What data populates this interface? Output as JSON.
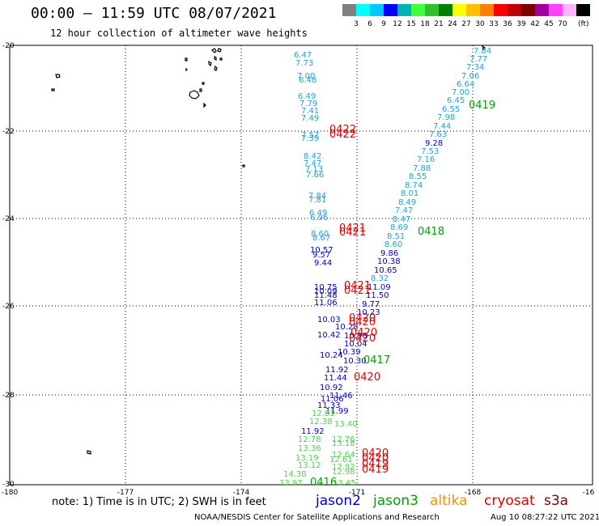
{
  "title": "00:00 – 11:59 UTC 08/07/2021",
  "subtitle": "12 hour collection of altimeter wave heights",
  "colorbar": {
    "colors": [
      "#808080",
      "#00ffff",
      "#00c8ff",
      "#0000ff",
      "#00b4b4",
      "#40ff40",
      "#30c030",
      "#008000",
      "#ffff00",
      "#ffc000",
      "#ff8000",
      "#ff0000",
      "#c00000",
      "#800000",
      "#a000a0",
      "#ff40ff",
      "#ffb4ff",
      "#000000"
    ],
    "tick_labels": [
      "3",
      "6",
      "9",
      "12",
      "15",
      "18",
      "21",
      "24",
      "27",
      "30",
      "33",
      "36",
      "39",
      "42",
      "45",
      "70"
    ],
    "unit": "(ft)"
  },
  "axes": {
    "lon_labels": [
      "-180",
      "-177",
      "-174",
      "-171",
      "-168",
      "-16"
    ],
    "lat_labels": [
      "-20",
      "-22",
      "-24",
      "-26",
      "-28",
      "-30"
    ]
  },
  "series_colors": {
    "jason2": "#0000cc",
    "jason3": "#00a000",
    "altika": "#ff8c00",
    "cryosat": "#e00000",
    "s3a": "#800000",
    "light_blue": "#1ea0dc",
    "light_green": "#50d050"
  },
  "heights": [
    {
      "t": "7.84",
      "s": "light_blue"
    },
    {
      "t": "7.77",
      "s": "light_blue"
    },
    {
      "t": "7.34",
      "s": "light_blue"
    },
    {
      "t": "7.06",
      "s": "light_blue"
    },
    {
      "t": "6.64",
      "s": "light_blue"
    },
    {
      "t": "7.00",
      "s": "light_blue"
    },
    {
      "t": "6.45",
      "s": "light_blue"
    },
    {
      "t": "6.55",
      "s": "light_blue"
    },
    {
      "t": "7.98",
      "s": "light_blue"
    },
    {
      "t": "7.44",
      "s": "light_blue"
    },
    {
      "t": "7.63",
      "s": "light_blue"
    },
    {
      "t": "9.28",
      "s": "jason2"
    },
    {
      "t": "7.53",
      "s": "light_blue"
    },
    {
      "t": "7.16",
      "s": "light_blue"
    },
    {
      "t": "7.88",
      "s": "light_blue"
    },
    {
      "t": "8.55",
      "s": "light_blue"
    },
    {
      "t": "8.74",
      "s": "light_blue"
    },
    {
      "t": "8.01",
      "s": "light_blue"
    },
    {
      "t": "8.49",
      "s": "light_blue"
    },
    {
      "t": "7.47",
      "s": "light_blue"
    },
    {
      "t": "8.47",
      "s": "light_blue"
    },
    {
      "t": "8.69",
      "s": "light_blue"
    },
    {
      "t": "8.51",
      "s": "light_blue"
    },
    {
      "t": "8.60",
      "s": "light_blue"
    },
    {
      "t": "9.86",
      "s": "jason2"
    },
    {
      "t": "10.38",
      "s": "jason2"
    },
    {
      "t": "10.65",
      "s": "jason2"
    },
    {
      "t": "8.32",
      "s": "light_blue"
    },
    {
      "t": "11.09",
      "s": "jason2"
    },
    {
      "t": "11.50",
      "s": "jason2"
    },
    {
      "t": "9.77",
      "s": "jason2"
    },
    {
      "t": "10.23",
      "s": "jason2"
    },
    {
      "t": "6.47",
      "s": "light_blue"
    },
    {
      "t": "7.73",
      "s": "light_blue"
    },
    {
      "t": "7.00",
      "s": "light_blue"
    },
    {
      "t": "6.48",
      "s": "light_blue"
    },
    {
      "t": "6.49",
      "s": "light_blue"
    },
    {
      "t": "7.79",
      "s": "light_blue"
    },
    {
      "t": "7.41",
      "s": "light_blue"
    },
    {
      "t": "7.49",
      "s": "light_blue"
    },
    {
      "t": "7.57",
      "s": "light_blue"
    },
    {
      "t": "7.39",
      "s": "light_blue"
    },
    {
      "t": "8.42",
      "s": "light_blue"
    },
    {
      "t": "7.47",
      "s": "light_blue"
    },
    {
      "t": "7.13",
      "s": "light_blue"
    },
    {
      "t": "7.66",
      "s": "light_blue"
    },
    {
      "t": "7.84",
      "s": "light_blue"
    },
    {
      "t": "7.81",
      "s": "light_blue"
    },
    {
      "t": "6.49",
      "s": "light_blue"
    },
    {
      "t": "6.96",
      "s": "light_blue"
    },
    {
      "t": "8.60",
      "s": "light_blue"
    },
    {
      "t": "8.67",
      "s": "light_blue"
    },
    {
      "t": "10.57",
      "s": "jason2"
    },
    {
      "t": "9.57",
      "s": "jason2"
    },
    {
      "t": "9.44",
      "s": "jason2"
    },
    {
      "t": "10.75",
      "s": "jason2"
    },
    {
      "t": "10.09",
      "s": "jason2"
    },
    {
      "t": "11.48",
      "s": "jason2"
    },
    {
      "t": "11.06",
      "s": "jason2"
    },
    {
      "t": "10.03",
      "s": "jason2"
    },
    {
      "t": "10.28",
      "s": "jason2"
    },
    {
      "t": "10.42",
      "s": "jason2"
    },
    {
      "t": "10.96",
      "s": "jason2"
    },
    {
      "t": "10.04",
      "s": "jason2"
    },
    {
      "t": "10.39",
      "s": "jason2"
    },
    {
      "t": "10.24",
      "s": "jason2"
    },
    {
      "t": "10.30",
      "s": "jason2"
    },
    {
      "t": "11.92",
      "s": "jason2"
    },
    {
      "t": "11.44",
      "s": "jason2"
    },
    {
      "t": "10.92",
      "s": "jason2"
    },
    {
      "t": "11.46",
      "s": "jason2"
    },
    {
      "t": "11.06",
      "s": "jason2"
    },
    {
      "t": "11.33",
      "s": "jason2"
    },
    {
      "t": "11.99",
      "s": "jason2"
    },
    {
      "t": "12.81",
      "s": "light_green"
    },
    {
      "t": "12.38",
      "s": "light_green"
    },
    {
      "t": "13.40",
      "s": "light_green"
    },
    {
      "t": "11.92",
      "s": "jason2"
    },
    {
      "t": "12.78",
      "s": "light_green"
    },
    {
      "t": "12.76",
      "s": "light_green"
    },
    {
      "t": "13.18",
      "s": "light_green"
    },
    {
      "t": "13.36",
      "s": "light_green"
    },
    {
      "t": "13.19",
      "s": "light_green"
    },
    {
      "t": "12.64",
      "s": "light_green"
    },
    {
      "t": "12.61",
      "s": "light_green"
    },
    {
      "t": "13.12",
      "s": "light_green"
    },
    {
      "t": "12.92",
      "s": "light_green"
    },
    {
      "t": "12.98",
      "s": "light_green"
    },
    {
      "t": "14.38",
      "s": "light_green"
    },
    {
      "t": "13.97",
      "s": "light_green"
    },
    {
      "t": "13.45",
      "s": "light_green"
    }
  ],
  "pass_labels": [
    {
      "t": "0419",
      "s": "jason3"
    },
    {
      "t": "0422",
      "s": "cryosat"
    },
    {
      "t": "0422",
      "s": "cryosat"
    },
    {
      "t": "0421",
      "s": "cryosat"
    },
    {
      "t": "0421",
      "s": "cryosat"
    },
    {
      "t": "0418",
      "s": "jason3"
    },
    {
      "t": "0421",
      "s": "cryosat"
    },
    {
      "t": "0421",
      "s": "cryosat"
    },
    {
      "t": "0420",
      "s": "cryosat"
    },
    {
      "t": "0420",
      "s": "cryosat"
    },
    {
      "t": "0420",
      "s": "cryosat"
    },
    {
      "t": "0420",
      "s": "cryosat"
    },
    {
      "t": "0417",
      "s": "jason3"
    },
    {
      "t": "0420",
      "s": "cryosat"
    },
    {
      "t": "0420",
      "s": "cryosat"
    },
    {
      "t": "0420",
      "s": "cryosat"
    },
    {
      "t": "0419",
      "s": "cryosat"
    },
    {
      "t": "0419",
      "s": "cryosat"
    },
    {
      "t": "0416",
      "s": "jason3"
    }
  ],
  "legend": {
    "jason2": "jason2",
    "jason3": "jason3",
    "altika": "altika",
    "cryosat": "cryosat",
    "s3a": "s3a"
  },
  "footer": {
    "note": "note: 1) Time is in UTC; 2) SWH is in feet",
    "credit": "NOAA/NESDIS Center for Satellite Applications and Research",
    "generated": "Aug 10 08:27:22 UTC 2021"
  }
}
